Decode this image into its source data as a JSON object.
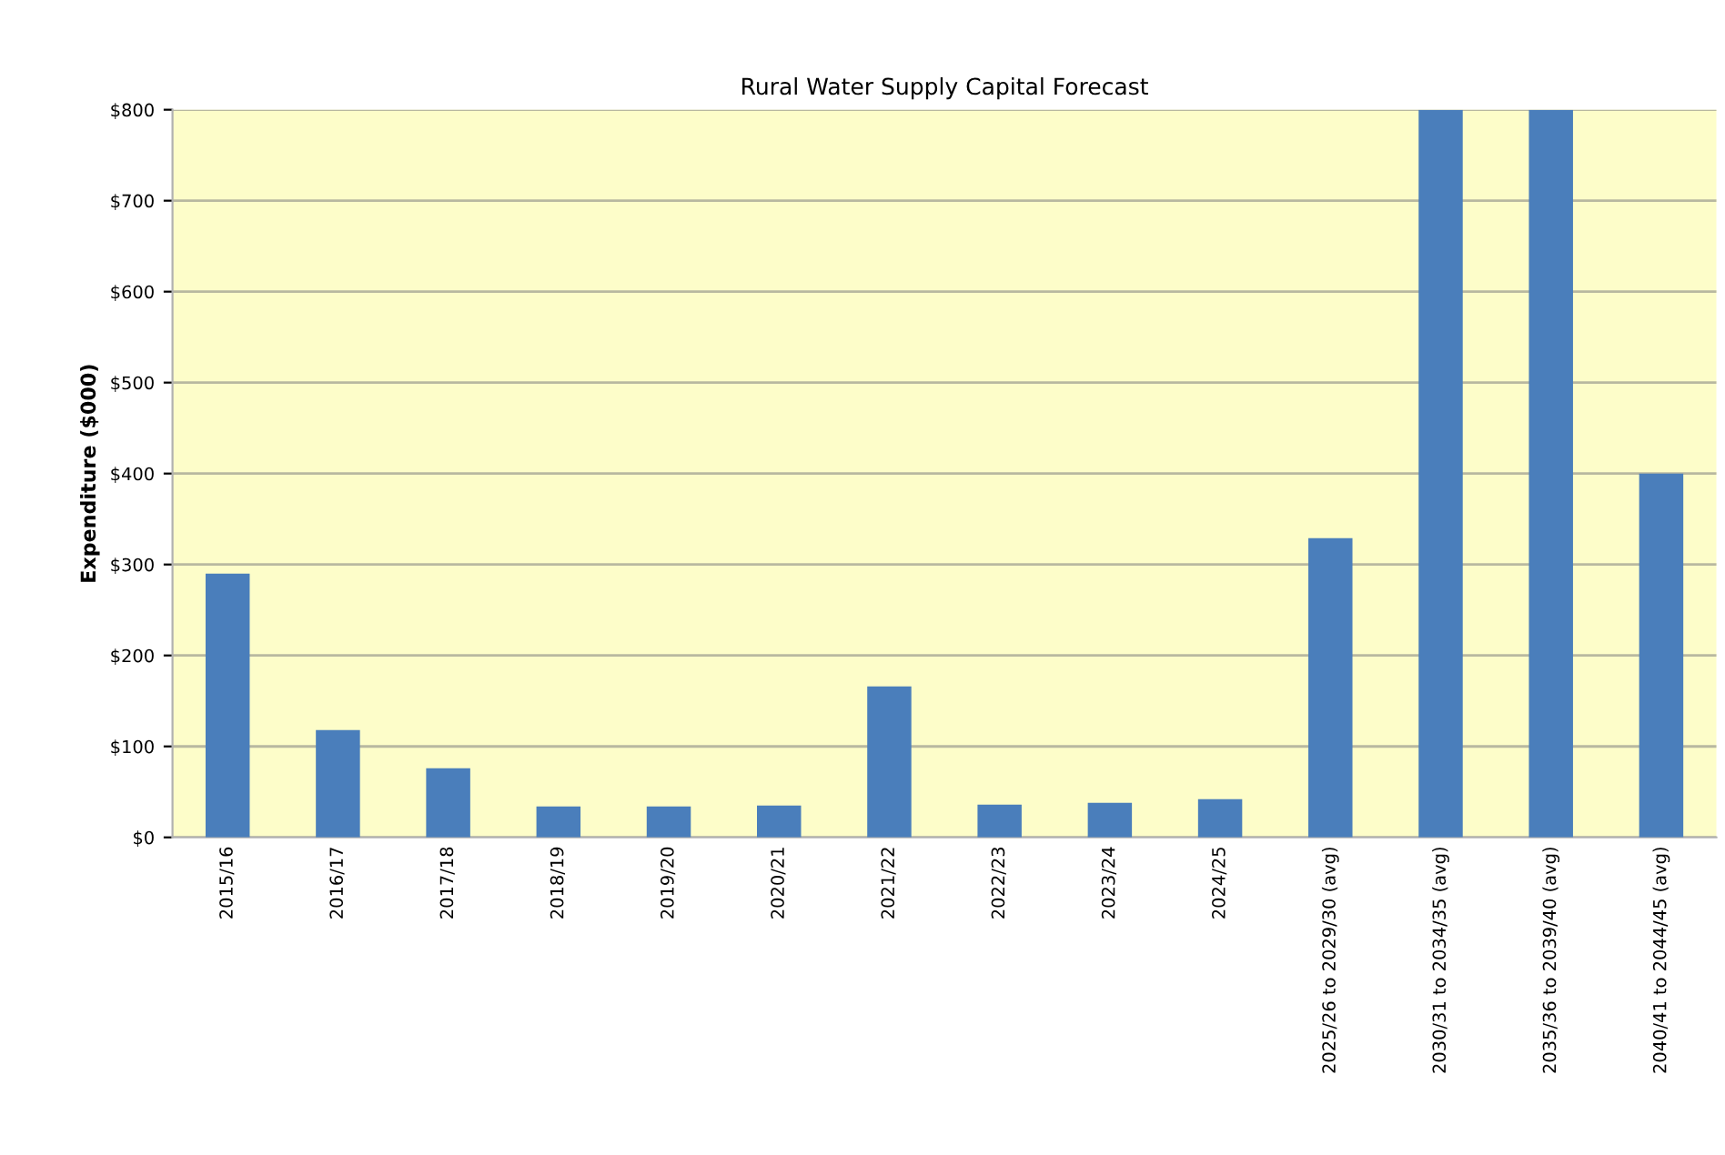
{
  "chart_data": {
    "type": "bar",
    "title": "Rural Water Supply Capital Forecast",
    "ylabel": "Expenditure ($000)",
    "categories": [
      "2015/16",
      "2016/17",
      "2017/18",
      "2018/19",
      "2019/20",
      "2020/21",
      "2021/22",
      "2022/23",
      "2023/24",
      "2024/25",
      "2025/26 to 2029/30 (avg)",
      "2030/31 to 2034/35 (avg)",
      "2035/36 to 2039/40 (avg)",
      "2040/41 to 2044/45 (avg)"
    ],
    "values": [
      290,
      118,
      76,
      34,
      34,
      35,
      166,
      36,
      38,
      42,
      329,
      800,
      800,
      400
    ],
    "color": "#4a7ebb",
    "ylim": [
      0,
      800
    ],
    "yticks": [
      {
        "value": 0,
        "label": "$0"
      },
      {
        "value": 100,
        "label": "$100"
      },
      {
        "value": 200,
        "label": "$200"
      },
      {
        "value": 300,
        "label": "$300"
      },
      {
        "value": 400,
        "label": "$400"
      },
      {
        "value": 500,
        "label": "$500"
      },
      {
        "value": 600,
        "label": "$600"
      },
      {
        "value": 700,
        "label": "$700"
      },
      {
        "value": 800,
        "label": "$800"
      }
    ],
    "grid": "y"
  }
}
